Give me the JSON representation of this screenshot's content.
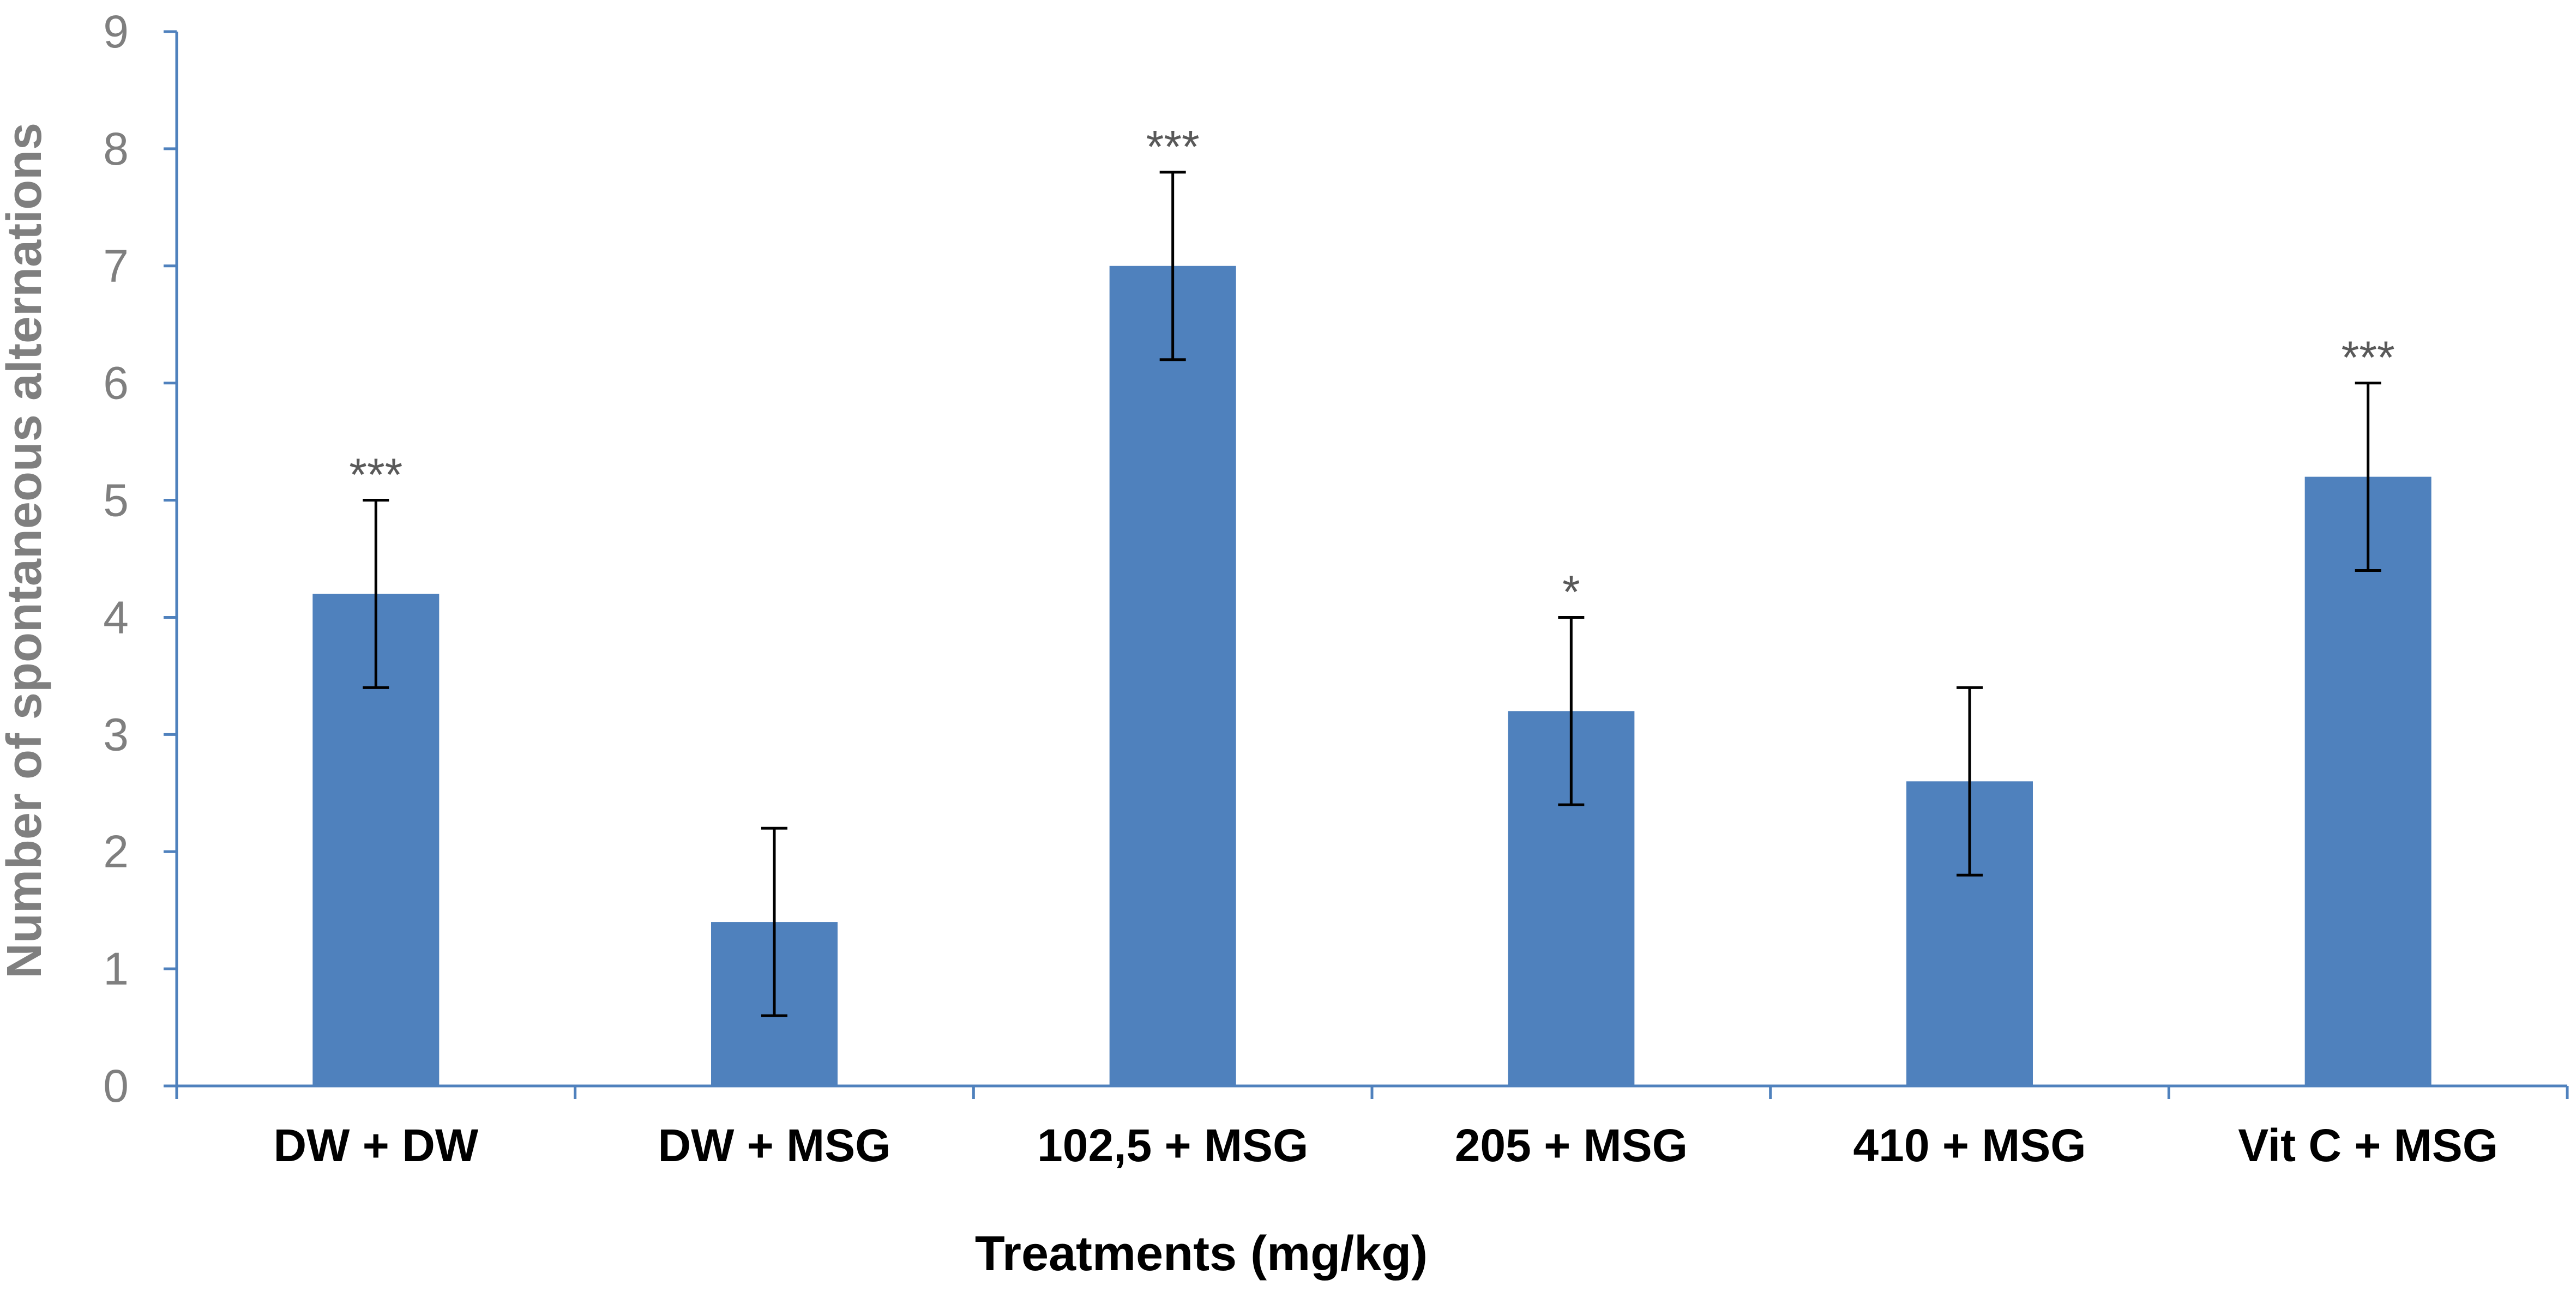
{
  "chart_data": {
    "type": "bar",
    "title": "",
    "xlabel": "Treatments (mg/kg)",
    "ylabel": "Number of spontaneous alternations",
    "categories": [
      "DW + DW",
      "DW + MSG",
      "102,5 + MSG",
      "205 + MSG",
      "410 + MSG",
      "Vit C + MSG"
    ],
    "series": [
      {
        "values": [
          4.2,
          1.4,
          7.0,
          3.2,
          2.6,
          5.2
        ],
        "error": [
          0.8,
          0.8,
          0.8,
          0.8,
          0.8,
          0.8
        ]
      }
    ],
    "significance": [
      "***",
      "",
      "***",
      "*",
      "",
      "***"
    ],
    "ylim": [
      0,
      9
    ],
    "yticks": [
      0,
      1,
      2,
      3,
      4,
      5,
      6,
      7,
      8,
      9
    ],
    "grid": false,
    "legend": "none",
    "colors": {
      "bar": "#4f81bd",
      "axis": "#4f81bd",
      "tick_text": "#7f7f7f",
      "ylabel_text": "#7f7f7f",
      "xlabel_text": "#000000",
      "error_bar": "#000000",
      "significance_text": "#595959"
    }
  }
}
